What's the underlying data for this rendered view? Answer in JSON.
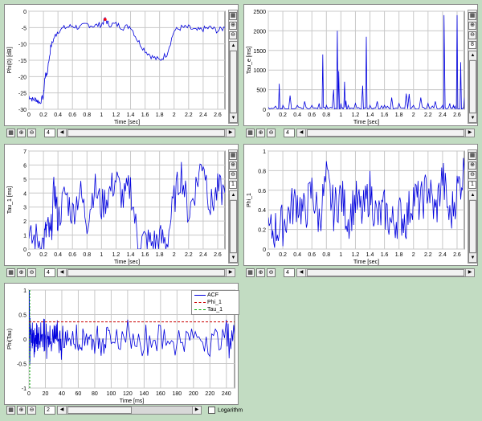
{
  "panels": [
    {
      "id": "phi0",
      "ylabel": "Phi(0) [dB]",
      "xlabel": "Time [sec]",
      "spin_value": "4",
      "side_spin_value": "",
      "yticks": [
        "0",
        "-5",
        "-10",
        "-15",
        "-20",
        "-25",
        "-30"
      ],
      "xticks": [
        "0",
        "0.2",
        "0.4",
        "0.6",
        "0.8",
        "1",
        "1.2",
        "1.4",
        "1.6",
        "1.8",
        "2",
        "2.2",
        "2.4",
        "2.6"
      ]
    },
    {
      "id": "tau_e",
      "ylabel": "Tau_e [ms]",
      "xlabel": "Time [sec]",
      "spin_value": "4",
      "side_spin_value": "8",
      "yticks": [
        "2500",
        "2000",
        "1500",
        "1000",
        "500",
        "0"
      ],
      "xticks": [
        "0",
        "0.2",
        "0.4",
        "0.6",
        "0.8",
        "1",
        "1.2",
        "1.4",
        "1.6",
        "1.8",
        "2",
        "2.2",
        "2.4",
        "2.6"
      ]
    },
    {
      "id": "tau_1",
      "ylabel": "Tau_1 [ms]",
      "xlabel": "Time [sec]",
      "spin_value": "4",
      "side_spin_value": "1",
      "yticks": [
        "7",
        "6",
        "5",
        "4",
        "3",
        "2",
        "1",
        "0"
      ],
      "xticks": [
        "0",
        "0.2",
        "0.4",
        "0.6",
        "0.8",
        "1",
        "1.2",
        "1.4",
        "1.6",
        "1.8",
        "2",
        "2.2",
        "2.4",
        "2.6"
      ]
    },
    {
      "id": "phi_1",
      "ylabel": "Phi_1",
      "xlabel": "Time [sec]",
      "spin_value": "4",
      "side_spin_value": "1",
      "yticks": [
        "1",
        "0.8",
        "0.6",
        "0.4",
        "0.2",
        "0"
      ],
      "xticks": [
        "0",
        "0.2",
        "0.4",
        "0.6",
        "0.8",
        "1",
        "1.2",
        "1.4",
        "1.6",
        "1.8",
        "2",
        "2.2",
        "2.4",
        "2.6"
      ]
    }
  ],
  "acf_panel": {
    "ylabel": "Phi(Tau)",
    "xlabel": "Time [ms]",
    "spin_value": "2",
    "yticks": [
      "1",
      "0.5",
      "0",
      "-0.5",
      "-1"
    ],
    "xticks": [
      "0",
      "20",
      "40",
      "60",
      "80",
      "100",
      "120",
      "140",
      "160",
      "180",
      "200",
      "220",
      "240"
    ],
    "legend": [
      "ACF",
      "Phi_1",
      "Tau_1"
    ],
    "logarithm_label": "Logarithm",
    "logarithm_checked": false
  },
  "colors": {
    "background": "#c2dcc2",
    "signal": "#0000dd",
    "phi1_line": "#cc0000",
    "tau1_line": "#00aa00",
    "grid": "#c8c8c8",
    "marker": "#ff0000"
  },
  "icons": {
    "chart": "chart-icon",
    "zoom_in": "zoom-in-icon",
    "zoom_out": "zoom-out-icon"
  },
  "chart_data": [
    {
      "type": "line",
      "title": "",
      "xlabel": "Time [sec]",
      "ylabel": "Phi(0) [dB]",
      "xlim": [
        0,
        2.7
      ],
      "ylim": [
        -30,
        0
      ],
      "x": [
        0,
        0.05,
        0.1,
        0.15,
        0.2,
        0.22,
        0.25,
        0.3,
        0.35,
        0.4,
        0.5,
        0.6,
        0.7,
        0.8,
        0.9,
        1.0,
        1.05,
        1.1,
        1.2,
        1.3,
        1.4,
        1.5,
        1.6,
        1.7,
        1.8,
        1.9,
        2.0,
        2.1,
        2.2,
        2.3,
        2.4,
        2.5,
        2.6,
        2.7
      ],
      "series": [
        {
          "values": [
            -26,
            -27,
            -27,
            -28,
            -26,
            -20,
            -19,
            -11,
            -8,
            -6,
            -5,
            -4.5,
            -5,
            -4,
            -4.5,
            -4,
            -2.5,
            -4,
            -4,
            -5,
            -4.5,
            -9,
            -12,
            -14,
            -15,
            -13,
            -6,
            -5,
            -5,
            -6,
            -5.5,
            -5,
            -6,
            -5
          ]
        }
      ],
      "marker": {
        "x": 1.05,
        "y": -2.5
      }
    },
    {
      "type": "line",
      "title": "",
      "xlabel": "Time [sec]",
      "ylabel": "Tau_e [ms]",
      "xlim": [
        0,
        2.7
      ],
      "ylim": [
        0,
        2500
      ],
      "x": [
        0,
        0.1,
        0.15,
        0.2,
        0.3,
        0.4,
        0.5,
        0.6,
        0.7,
        0.75,
        0.8,
        0.9,
        0.95,
        1.0,
        1.05,
        1.1,
        1.2,
        1.3,
        1.35,
        1.4,
        1.5,
        1.6,
        1.7,
        1.8,
        1.9,
        2.0,
        2.1,
        2.2,
        2.3,
        2.4,
        2.42,
        2.5,
        2.55,
        2.6,
        2.65,
        2.7
      ],
      "series": [
        {
          "values": [
            50,
            80,
            650,
            100,
            350,
            100,
            200,
            100,
            150,
            1400,
            100,
            500,
            2000,
            150,
            700,
            100,
            150,
            600,
            1850,
            100,
            200,
            100,
            300,
            150,
            400,
            100,
            300,
            150,
            200,
            100,
            2400,
            150,
            100,
            2400,
            1200,
            300
          ]
        }
      ]
    },
    {
      "type": "line",
      "title": "",
      "xlabel": "Time [sec]",
      "ylabel": "Tau_1 [ms]",
      "xlim": [
        0,
        2.7
      ],
      "ylim": [
        0,
        7
      ],
      "x": [
        0,
        0.1,
        0.2,
        0.25,
        0.3,
        0.35,
        0.4,
        0.5,
        0.6,
        0.7,
        0.8,
        0.9,
        1.0,
        1.1,
        1.2,
        1.3,
        1.4,
        1.5,
        1.6,
        1.7,
        1.8,
        1.9,
        2.0,
        2.1,
        2.2,
        2.3,
        2.4,
        2.5,
        2.6,
        2.7
      ],
      "series": [
        {
          "values": [
            0.5,
            0.8,
            0.4,
            1.5,
            0.8,
            4.5,
            2.0,
            4.0,
            2.5,
            4.2,
            2.0,
            4.5,
            3.0,
            4.0,
            5.0,
            3.5,
            4.5,
            0.5,
            0.6,
            0.4,
            0.7,
            0.5,
            3.5,
            5.5,
            2.5,
            4.5,
            6.5,
            3.0,
            4.2,
            4.0
          ]
        }
      ]
    },
    {
      "type": "line",
      "title": "",
      "xlabel": "Time [sec]",
      "ylabel": "Phi_1",
      "xlim": [
        0,
        2.7
      ],
      "ylim": [
        0,
        1
      ],
      "x": [
        0,
        0.1,
        0.2,
        0.3,
        0.4,
        0.5,
        0.6,
        0.7,
        0.8,
        0.9,
        1.0,
        1.1,
        1.2,
        1.3,
        1.4,
        1.5,
        1.6,
        1.7,
        1.8,
        1.9,
        2.0,
        2.1,
        2.2,
        2.3,
        2.4,
        2.5,
        2.6,
        2.7
      ],
      "series": [
        {
          "values": [
            0.15,
            0.2,
            0.25,
            0.4,
            0.5,
            0.35,
            0.6,
            0.3,
            0.7,
            0.4,
            0.55,
            0.3,
            0.5,
            0.35,
            0.6,
            0.3,
            0.4,
            0.25,
            0.35,
            0.3,
            0.55,
            0.45,
            0.65,
            0.35,
            0.75,
            0.3,
            0.6,
            0.8
          ]
        }
      ]
    },
    {
      "type": "line",
      "title": "",
      "xlabel": "Time [ms]",
      "ylabel": "Phi(Tau)",
      "xlim": [
        0,
        250
      ],
      "ylim": [
        -1,
        1
      ],
      "x": [
        0,
        1,
        2,
        4,
        6,
        8,
        10,
        14,
        18,
        22,
        26,
        30,
        35,
        40,
        50,
        60,
        70,
        80,
        90,
        100,
        120,
        140,
        160,
        180,
        200,
        220,
        240,
        250
      ],
      "series": [
        {
          "name": "ACF",
          "values": [
            1,
            0.6,
            0.1,
            -0.2,
            0.3,
            -0.3,
            0.35,
            -0.35,
            0.4,
            -0.3,
            0.35,
            -0.3,
            0.3,
            -0.3,
            0.3,
            -0.25,
            0.3,
            -0.25,
            0.25,
            -0.25,
            0.2,
            -0.2,
            0.25,
            -0.2,
            0.2,
            -0.2,
            0.2,
            0.1
          ]
        },
        {
          "name": "Phi_1",
          "values": [
            0.35,
            0.35,
            0.35,
            0.35,
            0.35,
            0.35,
            0.35,
            0.35,
            0.35,
            0.35,
            0.35,
            0.35,
            0.35,
            0.35,
            0.35,
            0.35,
            0.35,
            0.35,
            0.35,
            0.35,
            0.35,
            0.35,
            0.35,
            0.35,
            0.35,
            0.35,
            0.35,
            0.35
          ]
        }
      ],
      "tau1_x": 1,
      "legend_position": "top-right"
    }
  ]
}
